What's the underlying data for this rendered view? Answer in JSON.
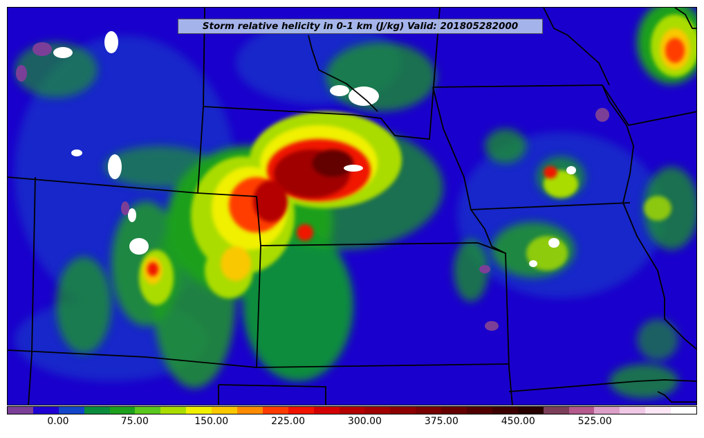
{
  "title": "Storm relative helicity in 0-1 km (J/kg) Valid: 201805282000",
  "colorbar": {
    "colors": [
      "#7b3f98",
      "#1e00d2",
      "#1446c8",
      "#0a8c3c",
      "#1ea01e",
      "#5ac81e",
      "#aadc00",
      "#f0f000",
      "#fac800",
      "#ff8c00",
      "#ff3c00",
      "#f01400",
      "#d20000",
      "#b40000",
      "#a00000",
      "#8c0000",
      "#780000",
      "#640000",
      "#500000",
      "#3c0000",
      "#280000",
      "#7b3f5a",
      "#b45a8c",
      "#dca0c8",
      "#f0c8e6",
      "#fae6f5",
      "#ffffff"
    ],
    "tick_labels": [
      "0.00",
      "75.00",
      "150.00",
      "225.00",
      "300.00",
      "375.00",
      "450.00",
      "525.00"
    ]
  },
  "map": {
    "background_color": "#1a00cc",
    "border_color": "#000000"
  }
}
